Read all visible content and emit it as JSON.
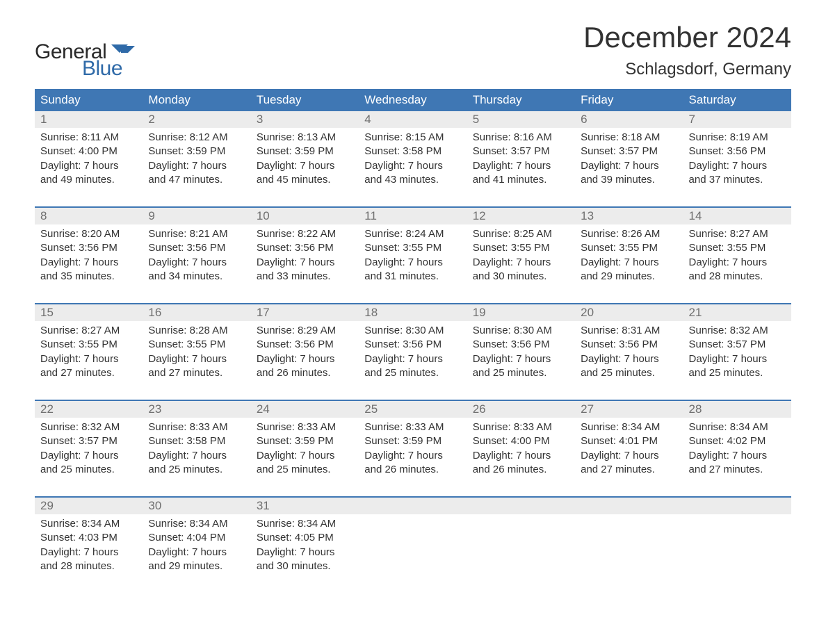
{
  "logo": {
    "word1": "General",
    "word2": "Blue"
  },
  "title": "December 2024",
  "subtitle": "Schlagsdorf, Germany",
  "colors": {
    "header_bg": "#3f77b4",
    "header_text": "#ffffff",
    "daynum_bg": "#ececec",
    "daynum_text": "#6f6f6f",
    "body_text": "#333333",
    "rule": "#3f77b4",
    "logo_accent": "#2f6aa8"
  },
  "weekdays": [
    "Sunday",
    "Monday",
    "Tuesday",
    "Wednesday",
    "Thursday",
    "Friday",
    "Saturday"
  ],
  "weeks": [
    [
      {
        "n": "1",
        "sunrise": "8:11 AM",
        "sunset": "4:00 PM",
        "dh": "7",
        "dm": "49"
      },
      {
        "n": "2",
        "sunrise": "8:12 AM",
        "sunset": "3:59 PM",
        "dh": "7",
        "dm": "47"
      },
      {
        "n": "3",
        "sunrise": "8:13 AM",
        "sunset": "3:59 PM",
        "dh": "7",
        "dm": "45"
      },
      {
        "n": "4",
        "sunrise": "8:15 AM",
        "sunset": "3:58 PM",
        "dh": "7",
        "dm": "43"
      },
      {
        "n": "5",
        "sunrise": "8:16 AM",
        "sunset": "3:57 PM",
        "dh": "7",
        "dm": "41"
      },
      {
        "n": "6",
        "sunrise": "8:18 AM",
        "sunset": "3:57 PM",
        "dh": "7",
        "dm": "39"
      },
      {
        "n": "7",
        "sunrise": "8:19 AM",
        "sunset": "3:56 PM",
        "dh": "7",
        "dm": "37"
      }
    ],
    [
      {
        "n": "8",
        "sunrise": "8:20 AM",
        "sunset": "3:56 PM",
        "dh": "7",
        "dm": "35"
      },
      {
        "n": "9",
        "sunrise": "8:21 AM",
        "sunset": "3:56 PM",
        "dh": "7",
        "dm": "34"
      },
      {
        "n": "10",
        "sunrise": "8:22 AM",
        "sunset": "3:56 PM",
        "dh": "7",
        "dm": "33"
      },
      {
        "n": "11",
        "sunrise": "8:24 AM",
        "sunset": "3:55 PM",
        "dh": "7",
        "dm": "31"
      },
      {
        "n": "12",
        "sunrise": "8:25 AM",
        "sunset": "3:55 PM",
        "dh": "7",
        "dm": "30"
      },
      {
        "n": "13",
        "sunrise": "8:26 AM",
        "sunset": "3:55 PM",
        "dh": "7",
        "dm": "29"
      },
      {
        "n": "14",
        "sunrise": "8:27 AM",
        "sunset": "3:55 PM",
        "dh": "7",
        "dm": "28"
      }
    ],
    [
      {
        "n": "15",
        "sunrise": "8:27 AM",
        "sunset": "3:55 PM",
        "dh": "7",
        "dm": "27"
      },
      {
        "n": "16",
        "sunrise": "8:28 AM",
        "sunset": "3:55 PM",
        "dh": "7",
        "dm": "27"
      },
      {
        "n": "17",
        "sunrise": "8:29 AM",
        "sunset": "3:56 PM",
        "dh": "7",
        "dm": "26"
      },
      {
        "n": "18",
        "sunrise": "8:30 AM",
        "sunset": "3:56 PM",
        "dh": "7",
        "dm": "25"
      },
      {
        "n": "19",
        "sunrise": "8:30 AM",
        "sunset": "3:56 PM",
        "dh": "7",
        "dm": "25"
      },
      {
        "n": "20",
        "sunrise": "8:31 AM",
        "sunset": "3:56 PM",
        "dh": "7",
        "dm": "25"
      },
      {
        "n": "21",
        "sunrise": "8:32 AM",
        "sunset": "3:57 PM",
        "dh": "7",
        "dm": "25"
      }
    ],
    [
      {
        "n": "22",
        "sunrise": "8:32 AM",
        "sunset": "3:57 PM",
        "dh": "7",
        "dm": "25"
      },
      {
        "n": "23",
        "sunrise": "8:33 AM",
        "sunset": "3:58 PM",
        "dh": "7",
        "dm": "25"
      },
      {
        "n": "24",
        "sunrise": "8:33 AM",
        "sunset": "3:59 PM",
        "dh": "7",
        "dm": "25"
      },
      {
        "n": "25",
        "sunrise": "8:33 AM",
        "sunset": "3:59 PM",
        "dh": "7",
        "dm": "26"
      },
      {
        "n": "26",
        "sunrise": "8:33 AM",
        "sunset": "4:00 PM",
        "dh": "7",
        "dm": "26"
      },
      {
        "n": "27",
        "sunrise": "8:34 AM",
        "sunset": "4:01 PM",
        "dh": "7",
        "dm": "27"
      },
      {
        "n": "28",
        "sunrise": "8:34 AM",
        "sunset": "4:02 PM",
        "dh": "7",
        "dm": "27"
      }
    ],
    [
      {
        "n": "29",
        "sunrise": "8:34 AM",
        "sunset": "4:03 PM",
        "dh": "7",
        "dm": "28"
      },
      {
        "n": "30",
        "sunrise": "8:34 AM",
        "sunset": "4:04 PM",
        "dh": "7",
        "dm": "29"
      },
      {
        "n": "31",
        "sunrise": "8:34 AM",
        "sunset": "4:05 PM",
        "dh": "7",
        "dm": "30"
      },
      null,
      null,
      null,
      null
    ]
  ],
  "labels": {
    "sunrise": "Sunrise: ",
    "sunset": "Sunset: ",
    "daylight1": "Daylight: ",
    "hours": " hours",
    "and": "and ",
    "minutes": " minutes."
  }
}
